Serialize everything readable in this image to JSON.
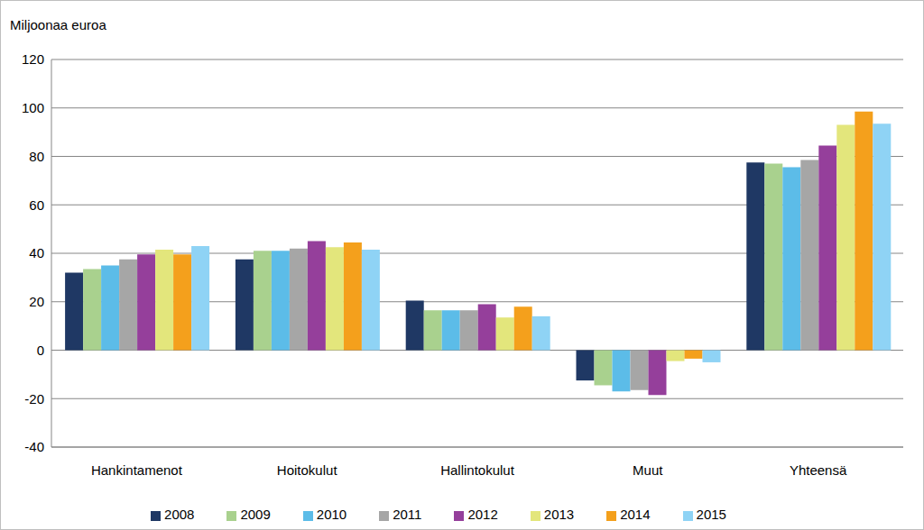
{
  "chart_data": {
    "type": "bar",
    "y_label": "Miljoonaa euroa",
    "categories": [
      "Hankintamenot",
      "Hoitokulut",
      "Hallintokulut",
      "Muut",
      "Yhteensä"
    ],
    "series": [
      {
        "name": "2008",
        "color": "#1f3864",
        "values": [
          32,
          37.5,
          20.5,
          -12.5,
          77.5
        ]
      },
      {
        "name": "2009",
        "color": "#a9d18e",
        "values": [
          33.5,
          41,
          16.5,
          -14.5,
          77
        ]
      },
      {
        "name": "2010",
        "color": "#5cbce8",
        "values": [
          35,
          41,
          16.5,
          -17,
          75.5
        ]
      },
      {
        "name": "2011",
        "color": "#a6a6a6",
        "values": [
          37.5,
          42,
          16.5,
          -16.5,
          78.5
        ]
      },
      {
        "name": "2012",
        "color": "#953f9b",
        "values": [
          39.5,
          45,
          19,
          -18.5,
          84.5
        ]
      },
      {
        "name": "2013",
        "color": "#e3e67c",
        "values": [
          41.5,
          42.5,
          13.5,
          -4.5,
          93
        ]
      },
      {
        "name": "2014",
        "color": "#f4a01c",
        "values": [
          39.5,
          44.5,
          18,
          -3.5,
          98.5
        ]
      },
      {
        "name": "2015",
        "color": "#8fd3f5",
        "values": [
          43,
          41.5,
          14,
          -5,
          93.5
        ]
      }
    ],
    "ylim": [
      -40,
      120
    ],
    "yticks": [
      -40,
      -20,
      0,
      20,
      40,
      60,
      80,
      100,
      120
    ],
    "grid": true,
    "legend": "bottom"
  }
}
